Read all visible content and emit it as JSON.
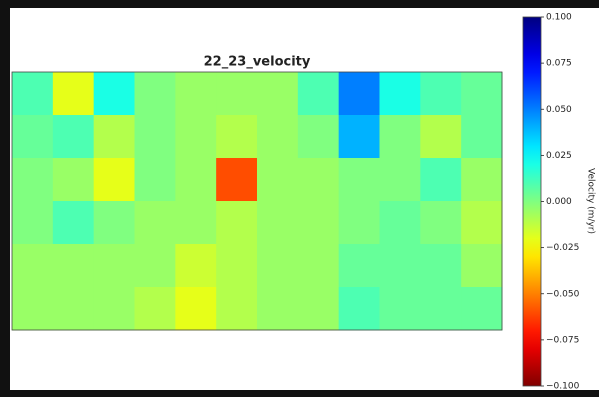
{
  "chart_data": {
    "type": "heatmap",
    "title": "22_23_velocity",
    "colormap": "jet_r",
    "colorbar_label": "Velocity (m/yr)",
    "clim": [
      -0.1,
      0.1
    ],
    "cticks": [
      {
        "value": 0.1,
        "label": "0.100"
      },
      {
        "value": 0.075,
        "label": "0.075"
      },
      {
        "value": 0.05,
        "label": "0.050"
      },
      {
        "value": 0.025,
        "label": "0.025"
      },
      {
        "value": 0,
        "label": "0.000"
      },
      {
        "value": -0.025,
        "label": "−0.025"
      },
      {
        "value": -0.05,
        "label": "−0.050"
      },
      {
        "value": -0.075,
        "label": "−0.075"
      },
      {
        "value": -0.1,
        "label": "−0.100"
      }
    ],
    "z": [
      [
        0.01,
        -0.02,
        0.02,
        0,
        -0.005,
        -0.005,
        -0.005,
        0.01,
        0.05,
        0.02,
        0.01,
        0.005
      ],
      [
        0.005,
        0.01,
        -0.01,
        0,
        -0.005,
        -0.01,
        -0.005,
        0,
        0.04,
        0,
        -0.01,
        0.005
      ],
      [
        0,
        -0.005,
        -0.02,
        0,
        -0.005,
        -0.06,
        -0.005,
        -0.005,
        0,
        0,
        0.01,
        -0.005
      ],
      [
        0,
        0.01,
        0,
        -0.005,
        -0.005,
        -0.01,
        -0.005,
        -0.005,
        0,
        0.005,
        0,
        -0.01
      ],
      [
        -0.005,
        -0.005,
        -0.005,
        -0.005,
        -0.015,
        -0.01,
        -0.005,
        -0.005,
        0.005,
        0.005,
        0.005,
        -0.005
      ],
      [
        -0.005,
        -0.005,
        -0.005,
        -0.01,
        -0.02,
        -0.01,
        -0.005,
        -0.005,
        0.01,
        0.005,
        0.005,
        0.005
      ]
    ]
  }
}
